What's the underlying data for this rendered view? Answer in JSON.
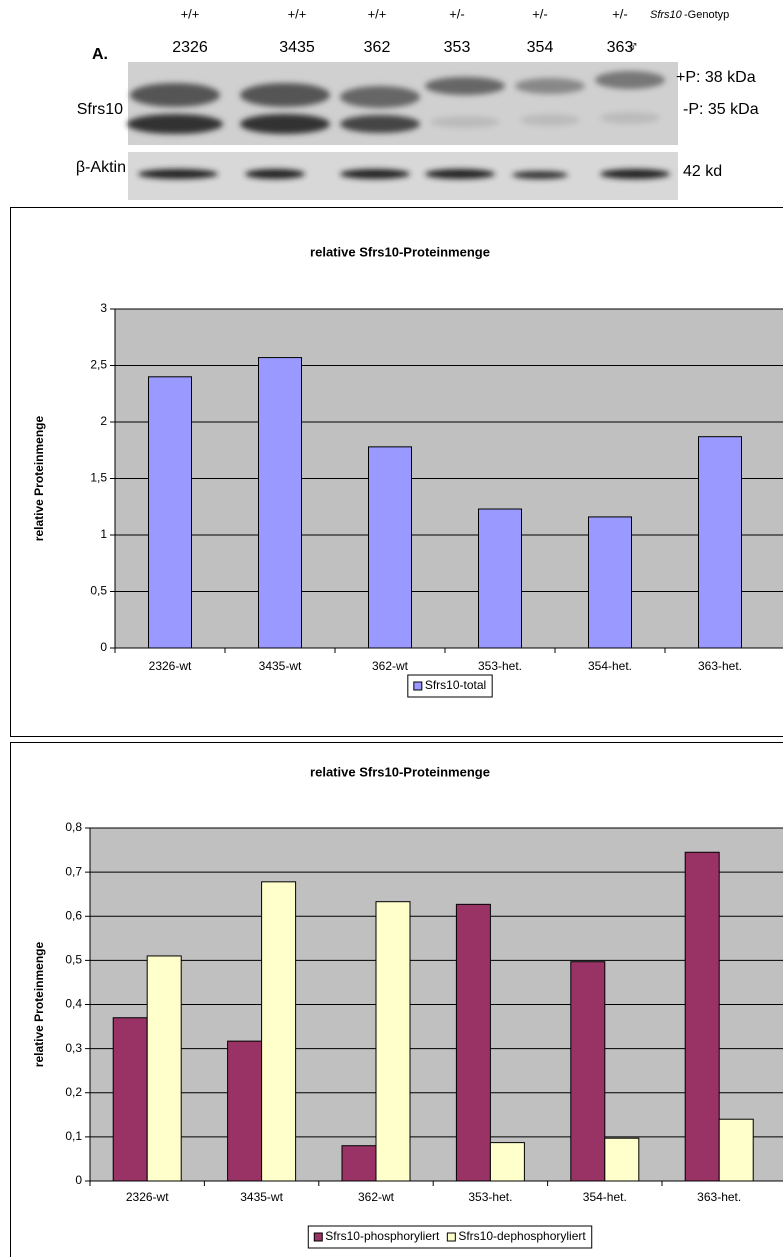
{
  "blot": {
    "panel_label": "A.",
    "genotypes": [
      "+/+",
      "+/+",
      "+/+",
      "+/-",
      "+/-",
      "+/-"
    ],
    "genotype_gene": "Sfrs10",
    "genotype_suffix": "-Genotyp",
    "animals": [
      "2326",
      "3435",
      "362",
      "353",
      "354",
      "363"
    ],
    "sex": "♂",
    "rows": [
      "Sfrs10",
      "β-Aktin"
    ],
    "band_labels": [
      "+P: 38 kDa",
      "-P: 35 kDa",
      "42 kd"
    ]
  },
  "chart_data": [
    {
      "type": "bar",
      "title": "relative Sfrs10-Proteinmenge",
      "y_label": "relative Proteinmenge",
      "categories": [
        "2326-wt",
        "3435-wt",
        "362-wt",
        "353-het.",
        "354-het.",
        "363-het."
      ],
      "series": [
        {
          "name": "Sfrs10-total",
          "color": "#9999ff",
          "values": [
            2.4,
            2.57,
            1.78,
            1.23,
            1.16,
            1.87
          ]
        }
      ],
      "ylim": [
        0,
        3
      ],
      "yticks": [
        0,
        {
          "value": 0.5,
          "label": "0,5"
        },
        1,
        {
          "value": 1.5,
          "label": "1,5"
        },
        2,
        {
          "value": 2.5,
          "label": "2,5"
        },
        3
      ],
      "grid": true
    },
    {
      "type": "bar",
      "title": "relative Sfrs10-Proteinmenge",
      "y_label": "relative Proteinmenge",
      "categories": [
        "2326-wt",
        "3435-wt",
        "362-wt",
        "353-het.",
        "354-het.",
        "363-het."
      ],
      "series": [
        {
          "name": "Sfrs10-phosphoryliert",
          "color": "#993366",
          "values": [
            0.37,
            0.317,
            0.08,
            0.627,
            0.497,
            0.745
          ]
        },
        {
          "name": "Sfrs10-dephosphoryliert",
          "color": "#ffffcc",
          "values": [
            0.51,
            0.678,
            0.633,
            0.087,
            0.097,
            0.14
          ]
        }
      ],
      "ylim": [
        0,
        0.8
      ],
      "yticks": [
        0,
        {
          "value": 0.1,
          "label": "0,1"
        },
        {
          "value": 0.2,
          "label": "0,2"
        },
        {
          "value": 0.3,
          "label": "0,3"
        },
        {
          "value": 0.4,
          "label": "0,4"
        },
        {
          "value": 0.5,
          "label": "0,5"
        },
        {
          "value": 0.6,
          "label": "0,6"
        },
        {
          "value": 0.7,
          "label": "0,7"
        },
        {
          "value": 0.8,
          "label": "0,8"
        }
      ],
      "grid": true
    }
  ]
}
